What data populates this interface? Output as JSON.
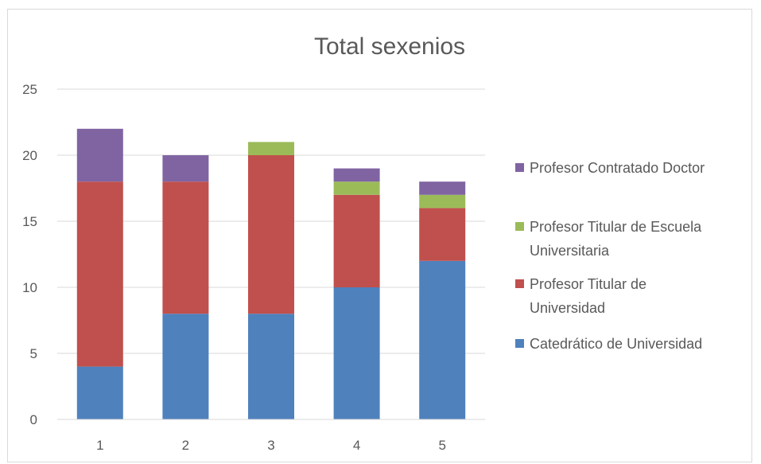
{
  "chart_data": {
    "type": "bar",
    "stacked": true,
    "title": "Total sexenios",
    "categories": [
      "1",
      "2",
      "3",
      "4",
      "5"
    ],
    "ylim": [
      0,
      25
    ],
    "yticks": [
      0,
      5,
      10,
      15,
      20,
      25
    ],
    "grid": true,
    "legend_position": "right",
    "series": [
      {
        "name": "Catedrático de Universidad",
        "color": "#4f81bd",
        "values": [
          4,
          8,
          8,
          10,
          12
        ]
      },
      {
        "name": "Profesor Titular de Universidad",
        "color": "#c0504d",
        "values": [
          14,
          10,
          12,
          7,
          4
        ]
      },
      {
        "name": "Profesor Titular de Escuela Universitaria",
        "color": "#9bbb59",
        "values": [
          0,
          0,
          1,
          1,
          1
        ]
      },
      {
        "name": "Profesor Contratado Doctor",
        "color": "#8064a2",
        "values": [
          4,
          2,
          0,
          1,
          1
        ]
      }
    ],
    "legend": [
      {
        "series": 3,
        "lines": [
          "Profesor Contratado Doctor"
        ]
      },
      {
        "series": 2,
        "lines": [
          "Profesor Titular de Escuela",
          "Universitaria"
        ]
      },
      {
        "series": 1,
        "lines": [
          "Profesor Titular de",
          "Universidad"
        ]
      },
      {
        "series": 0,
        "lines": [
          "Catedrático de Universidad"
        ]
      }
    ]
  }
}
